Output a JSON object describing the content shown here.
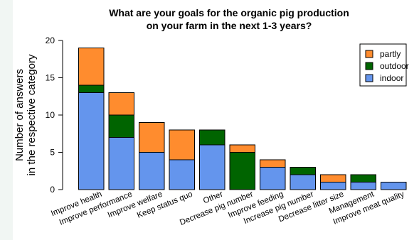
{
  "chart_data": {
    "type": "bar",
    "stacked": true,
    "title": "What are your goals for the organic pig production on your farm in the next 1-3 years?",
    "title_lines": [
      "What are your goals for the organic pig production",
      "on your farm in the next 1-3 years?"
    ],
    "xlabel": "",
    "ylabel": "Number of answers in the respective category",
    "ylabel_lines": [
      "Number of answers",
      "in the respective category"
    ],
    "ylim": [
      0,
      20
    ],
    "yticks": [
      0,
      5,
      10,
      15,
      20
    ],
    "categories": [
      "Improve health",
      "Improve performance",
      "Improve welfare",
      "Keep status quo",
      "Other",
      "Decrease pig number",
      "Improve feeding",
      "Increase pig number",
      "Decrease litter size",
      "Management",
      "Improve meat quality"
    ],
    "series": [
      {
        "name": "indoor",
        "color": "#6495ed",
        "values": [
          13,
          7,
          5,
          4,
          6,
          0,
          3,
          2,
          1,
          1,
          1
        ]
      },
      {
        "name": "outdoor",
        "color": "#006400",
        "values": [
          1,
          3,
          0,
          0,
          2,
          5,
          0,
          1,
          0,
          1,
          0
        ]
      },
      {
        "name": "partly",
        "color": "#ff8c2e",
        "values": [
          5,
          3,
          4,
          4,
          0,
          1,
          1,
          0,
          1,
          0,
          0
        ]
      }
    ],
    "legend": {
      "position": "top-right",
      "order": [
        "partly",
        "outdoor",
        "indoor"
      ]
    },
    "grid": false
  }
}
